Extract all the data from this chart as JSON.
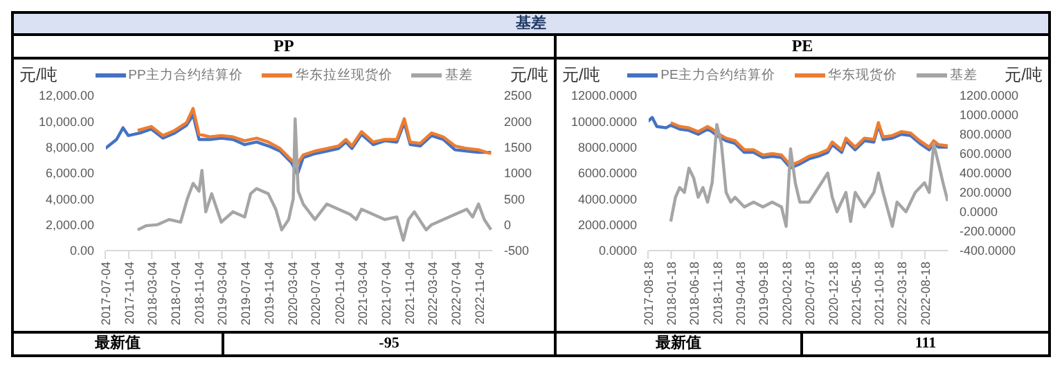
{
  "chart_data": [
    {
      "type": "line",
      "title": "PP",
      "ylabel": "元/吨",
      "y2label": "元/吨",
      "legend": "top",
      "annotations": [
        "基差",
        "最新值",
        "-95"
      ],
      "xlim": [
        "2017-07-04",
        "2023-01-15"
      ],
      "xticks": [
        "2017-07-04",
        "2017-11-04",
        "2018-03-04",
        "2018-07-04",
        "2018-11-04",
        "2019-03-04",
        "2019-07-04",
        "2019-11-04",
        "2020-03-04",
        "2020-07-04",
        "2020-11-04",
        "2021-03-04",
        "2021-07-04",
        "2021-11-04",
        "2022-03-04",
        "2022-07-04",
        "2022-11-04"
      ],
      "ylim": [
        0,
        12000
      ],
      "yticks": [
        {
          "value": 0,
          "label": "0.00"
        },
        {
          "value": 2000,
          "label": "2,000.00"
        },
        {
          "value": 4000,
          "label": "4,000.00"
        },
        {
          "value": 6000,
          "label": "6,000.00"
        },
        {
          "value": 8000,
          "label": "8,000.00"
        },
        {
          "value": 10000,
          "label": "10,000.00"
        },
        {
          "value": 12000,
          "label": "12,000.00"
        }
      ],
      "y2lim": [
        -500,
        2500
      ],
      "y2ticks": [
        -500,
        0,
        500,
        1000,
        1500,
        2000,
        2500
      ],
      "series": [
        {
          "name": "PP主力合约结算价",
          "color": "#4472c4",
          "x": [
            "2017-07-04",
            "2017-09-01",
            "2017-10-05",
            "2017-11-01",
            "2018-01-01",
            "2018-03-01",
            "2018-05-01",
            "2018-07-01",
            "2018-09-01",
            "2018-10-05",
            "2018-11-05",
            "2019-01-01",
            "2019-03-01",
            "2019-05-01",
            "2019-07-01",
            "2019-09-01",
            "2019-11-01",
            "2020-01-01",
            "2020-03-01",
            "2020-04-01",
            "2020-05-01",
            "2020-07-01",
            "2020-09-01",
            "2020-11-01",
            "2020-12-10",
            "2021-01-10",
            "2021-03-01",
            "2021-05-01",
            "2021-07-01",
            "2021-09-01",
            "2021-10-10",
            "2021-11-10",
            "2022-01-01",
            "2022-03-01",
            "2022-05-01",
            "2022-07-01",
            "2022-09-01",
            "2022-11-01",
            "2023-01-05"
          ],
          "values": [
            7900,
            8600,
            9500,
            8900,
            9100,
            9400,
            8700,
            9100,
            9700,
            10500,
            8600,
            8600,
            8700,
            8600,
            8200,
            8400,
            8100,
            7700,
            6800,
            5900,
            7200,
            7500,
            7700,
            7900,
            8400,
            7900,
            9000,
            8200,
            8500,
            8400,
            9900,
            8200,
            8100,
            8900,
            8600,
            7800,
            7700,
            7600,
            7600
          ]
        },
        {
          "name": "华东拉丝现货价",
          "color": "#ed7d31",
          "x": [
            "2017-12-20",
            "2018-03-01",
            "2018-05-01",
            "2018-07-01",
            "2018-09-01",
            "2018-10-05",
            "2018-11-05",
            "2019-01-01",
            "2019-03-01",
            "2019-05-01",
            "2019-07-01",
            "2019-09-01",
            "2019-11-01",
            "2020-01-01",
            "2020-03-01",
            "2020-04-01",
            "2020-05-01",
            "2020-07-01",
            "2020-09-01",
            "2020-11-01",
            "2020-12-10",
            "2021-01-10",
            "2021-03-01",
            "2021-05-01",
            "2021-07-01",
            "2021-09-01",
            "2021-10-10",
            "2021-11-10",
            "2022-01-01",
            "2022-03-01",
            "2022-05-01",
            "2022-07-01",
            "2022-09-01",
            "2022-11-01",
            "2023-01-05"
          ],
          "values": [
            9300,
            9600,
            8900,
            9300,
            9900,
            11000,
            9000,
            8800,
            8900,
            8800,
            8500,
            8700,
            8400,
            7900,
            7000,
            6700,
            7400,
            7700,
            7900,
            8100,
            8600,
            8100,
            9200,
            8400,
            8600,
            8600,
            10200,
            8400,
            8300,
            9100,
            8800,
            8100,
            7900,
            7800,
            7500
          ]
        },
        {
          "name": "基差",
          "color": "#a5a5a5",
          "axis": "y2",
          "x": [
            "2017-12-20",
            "2018-02-01",
            "2018-04-01",
            "2018-06-01",
            "2018-08-01",
            "2018-09-05",
            "2018-10-05",
            "2018-11-05",
            "2018-11-20",
            "2018-12-10",
            "2019-01-10",
            "2019-03-01",
            "2019-05-01",
            "2019-07-01",
            "2019-08-01",
            "2019-09-01",
            "2019-11-01",
            "2019-12-10",
            "2020-01-10",
            "2020-02-15",
            "2020-03-10",
            "2020-03-20",
            "2020-04-05",
            "2020-05-01",
            "2020-07-01",
            "2020-09-01",
            "2020-11-01",
            "2021-01-01",
            "2021-02-01",
            "2021-03-01",
            "2021-05-01",
            "2021-07-01",
            "2021-09-01",
            "2021-10-05",
            "2021-11-01",
            "2021-12-01",
            "2022-02-01",
            "2022-03-01",
            "2022-05-01",
            "2022-07-01",
            "2022-09-01",
            "2022-10-01",
            "2022-11-01",
            "2022-12-01",
            "2023-01-05"
          ],
          "values": [
            -100,
            -20,
            0,
            100,
            50,
            500,
            800,
            650,
            1050,
            250,
            600,
            50,
            250,
            150,
            600,
            700,
            600,
            300,
            -100,
            100,
            500,
            2050,
            650,
            400,
            100,
            400,
            300,
            200,
            100,
            300,
            200,
            100,
            150,
            -300,
            100,
            250,
            -100,
            0,
            100,
            200,
            300,
            150,
            400,
            100,
            -95
          ]
        }
      ]
    },
    {
      "type": "line",
      "title": "PE",
      "ylabel": "元/吨",
      "y2label": "元/吨",
      "legend": "top",
      "annotations": [
        "最新值",
        "111"
      ],
      "xlim": [
        "2017-08-18",
        "2023-01-20"
      ],
      "xticks": [
        "2017-08-18",
        "2018-01-18",
        "2018-06-18",
        "2018-11-18",
        "2019-04-18",
        "2019-09-18",
        "2020-02-18",
        "2020-07-18",
        "2020-12-18",
        "2021-05-18",
        "2021-10-18",
        "2022-03-18",
        "2022-08-18"
      ],
      "ylim": [
        0,
        12000
      ],
      "yticks": [
        {
          "value": 0,
          "label": "0.0000"
        },
        {
          "value": 2000,
          "label": "2000.0000"
        },
        {
          "value": 4000,
          "label": "4000.0000"
        },
        {
          "value": 6000,
          "label": "6000.0000"
        },
        {
          "value": 8000,
          "label": "8000.0000"
        },
        {
          "value": 10000,
          "label": "10000.0000"
        },
        {
          "value": 12000,
          "label": "12000.0000"
        }
      ],
      "y2lim": [
        -400,
        1200
      ],
      "y2ticks": [
        {
          "value": -400,
          "label": "-400.0000"
        },
        {
          "value": -200,
          "label": "-200.0000"
        },
        {
          "value": 0,
          "label": "0.0000"
        },
        {
          "value": 200,
          "label": "200.0000"
        },
        {
          "value": 400,
          "label": "400.0000"
        },
        {
          "value": 600,
          "label": "600.0000"
        },
        {
          "value": 800,
          "label": "800.0000"
        },
        {
          "value": 1000,
          "label": "1000.0000"
        },
        {
          "value": 1200,
          "label": "1200.0000"
        }
      ],
      "series": [
        {
          "name": "PE主力合约结算价",
          "color": "#4472c4",
          "x": [
            "2017-08-18",
            "2017-09-15",
            "2017-10-15",
            "2017-12-15",
            "2018-01-15",
            "2018-03-15",
            "2018-05-15",
            "2018-07-15",
            "2018-09-15",
            "2018-10-15",
            "2018-11-15",
            "2019-01-15",
            "2019-03-15",
            "2019-05-15",
            "2019-07-15",
            "2019-09-15",
            "2019-11-15",
            "2020-01-15",
            "2020-03-15",
            "2020-05-15",
            "2020-07-15",
            "2020-09-15",
            "2020-11-15",
            "2020-12-15",
            "2021-02-15",
            "2021-03-15",
            "2021-05-15",
            "2021-07-15",
            "2021-09-15",
            "2021-10-15",
            "2021-11-15",
            "2022-01-15",
            "2022-03-15",
            "2022-05-15",
            "2022-07-15",
            "2022-09-15",
            "2022-10-15",
            "2022-11-15",
            "2023-01-15"
          ],
          "values": [
            10000,
            10300,
            9600,
            9500,
            9700,
            9400,
            9300,
            9000,
            9400,
            9200,
            8900,
            8500,
            8300,
            7600,
            7600,
            7200,
            7300,
            7200,
            6400,
            6700,
            7100,
            7300,
            7600,
            8200,
            7600,
            8500,
            7800,
            8500,
            8400,
            9700,
            8600,
            8700,
            9000,
            8900,
            8300,
            7800,
            8300,
            8000,
            8000
          ]
        },
        {
          "name": "华东现货价",
          "color": "#ed7d31",
          "x": [
            "2018-01-15",
            "2018-03-15",
            "2018-05-15",
            "2018-07-15",
            "2018-09-15",
            "2018-10-15",
            "2018-11-15",
            "2019-01-15",
            "2019-03-15",
            "2019-05-15",
            "2019-07-15",
            "2019-09-15",
            "2019-11-15",
            "2020-01-15",
            "2020-03-15",
            "2020-05-15",
            "2020-07-15",
            "2020-09-15",
            "2020-11-15",
            "2020-12-15",
            "2021-02-15",
            "2021-03-15",
            "2021-05-15",
            "2021-07-15",
            "2021-09-15",
            "2021-10-15",
            "2021-11-15",
            "2022-01-15",
            "2022-03-15",
            "2022-05-15",
            "2022-07-15",
            "2022-09-15",
            "2022-10-15",
            "2022-11-15",
            "2023-01-15"
          ],
          "values": [
            9900,
            9600,
            9500,
            9200,
            9600,
            9400,
            9100,
            8700,
            8500,
            7800,
            7800,
            7400,
            7500,
            7400,
            6600,
            6900,
            7300,
            7500,
            7800,
            8400,
            7800,
            8700,
            8000,
            8700,
            8600,
            9900,
            8800,
            8900,
            9200,
            9100,
            8500,
            8000,
            8500,
            8200,
            8100
          ]
        },
        {
          "name": "基差",
          "color": "#a5a5a5",
          "axis": "y2",
          "x": [
            "2018-01-15",
            "2018-02-15",
            "2018-03-15",
            "2018-04-15",
            "2018-05-15",
            "2018-06-15",
            "2018-07-15",
            "2018-08-15",
            "2018-09-15",
            "2018-10-15",
            "2018-11-15",
            "2018-12-15",
            "2019-01-15",
            "2019-02-15",
            "2019-03-15",
            "2019-05-15",
            "2019-07-15",
            "2019-09-15",
            "2019-11-15",
            "2020-01-15",
            "2020-02-15",
            "2020-03-15",
            "2020-04-15",
            "2020-05-15",
            "2020-07-15",
            "2020-09-15",
            "2020-11-15",
            "2020-12-15",
            "2021-01-15",
            "2021-03-15",
            "2021-04-15",
            "2021-05-15",
            "2021-07-15",
            "2021-09-15",
            "2021-10-15",
            "2021-11-15",
            "2022-01-15",
            "2022-02-15",
            "2022-04-15",
            "2022-06-15",
            "2022-08-15",
            "2022-09-15",
            "2022-10-15",
            "2022-11-15",
            "2022-12-15",
            "2023-01-15"
          ],
          "values": [
            -100,
            150,
            250,
            200,
            450,
            350,
            150,
            250,
            100,
            300,
            900,
            700,
            200,
            100,
            150,
            50,
            100,
            50,
            100,
            50,
            -150,
            650,
            300,
            100,
            100,
            250,
            400,
            150,
            0,
            200,
            -100,
            200,
            50,
            200,
            400,
            200,
            -150,
            100,
            0,
            200,
            300,
            200,
            700,
            500,
            300,
            111
          ]
        }
      ]
    }
  ]
}
